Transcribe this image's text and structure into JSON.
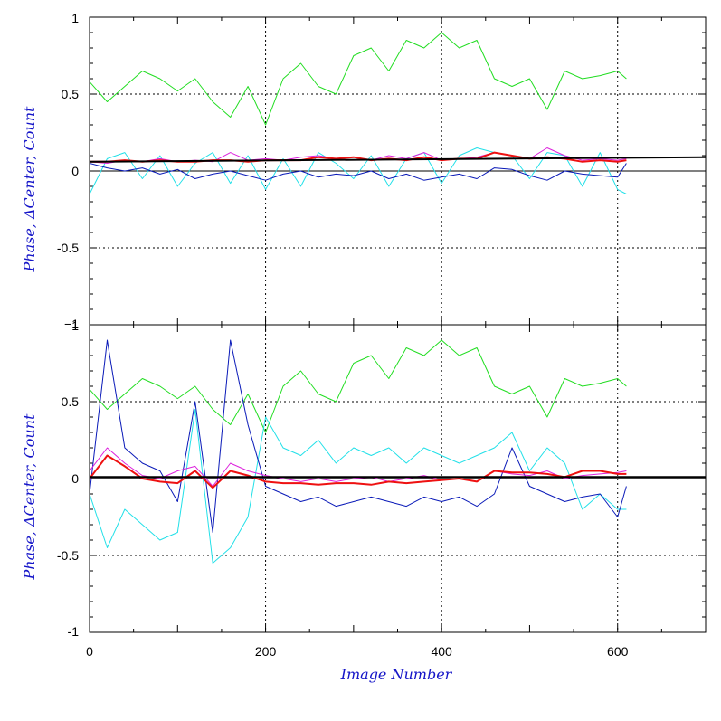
{
  "chart_data": {
    "type": "line",
    "xlabel": "Image Number",
    "x_ticks": [
      0,
      200,
      400,
      600
    ],
    "xlim": [
      0,
      700
    ],
    "colors": {
      "green": "#22dd22",
      "cyan": "#22e0e8",
      "blue": "#0a1ab8",
      "magenta": "#dd22dd",
      "red": "#ee1111",
      "black": "#000000"
    },
    "panels": [
      {
        "ylabel": "Phase, ΔCenter, Count",
        "ylim": [
          -1,
          1
        ],
        "y_ticks": [
          1,
          0.5,
          0,
          -0.5,
          -1
        ],
        "y_tick_labels": [
          "1",
          "0.5",
          "0",
          "-0.5",
          "−1"
        ],
        "grid": true,
        "series": [
          {
            "color": "green",
            "x": [
              0,
              20,
              40,
              60,
              80,
              100,
              120,
              140,
              160,
              180,
              200,
              220,
              240,
              260,
              280,
              300,
              320,
              340,
              360,
              380,
              400,
              420,
              440,
              460,
              480,
              500,
              520,
              540,
              560,
              580,
              600,
              610
            ],
            "values": [
              0.58,
              0.45,
              0.55,
              0.65,
              0.6,
              0.52,
              0.6,
              0.45,
              0.35,
              0.55,
              0.3,
              0.6,
              0.7,
              0.55,
              0.5,
              0.75,
              0.8,
              0.65,
              0.85,
              0.8,
              0.9,
              0.8,
              0.85,
              0.6,
              0.55,
              0.6,
              0.4,
              0.65,
              0.6,
              0.62,
              0.65,
              0.6
            ]
          },
          {
            "color": "cyan",
            "x": [
              0,
              20,
              40,
              60,
              80,
              100,
              120,
              140,
              160,
              180,
              200,
              220,
              240,
              260,
              280,
              300,
              320,
              340,
              360,
              380,
              400,
              420,
              440,
              460,
              480,
              500,
              520,
              540,
              560,
              580,
              600,
              610
            ],
            "values": [
              -0.15,
              0.08,
              0.12,
              -0.05,
              0.1,
              -0.1,
              0.05,
              0.12,
              -0.08,
              0.1,
              -0.12,
              0.08,
              -0.1,
              0.12,
              0.05,
              -0.05,
              0.1,
              -0.1,
              0.08,
              0.12,
              -0.08,
              0.1,
              0.15,
              0.12,
              0.1,
              -0.05,
              0.12,
              0.1,
              -0.1,
              0.12,
              -0.12,
              -0.15
            ]
          },
          {
            "color": "blue",
            "x": [
              0,
              20,
              40,
              60,
              80,
              100,
              120,
              140,
              160,
              180,
              200,
              220,
              240,
              260,
              280,
              300,
              320,
              340,
              360,
              380,
              400,
              420,
              440,
              460,
              480,
              500,
              520,
              540,
              560,
              580,
              600,
              610
            ],
            "values": [
              0.05,
              0.02,
              0.0,
              0.02,
              -0.02,
              0.01,
              -0.05,
              -0.02,
              0.0,
              -0.03,
              -0.06,
              -0.02,
              0.0,
              -0.04,
              -0.02,
              -0.03,
              0.0,
              -0.05,
              -0.02,
              -0.06,
              -0.04,
              -0.02,
              -0.05,
              0.02,
              0.01,
              -0.03,
              -0.06,
              0.0,
              -0.02,
              -0.03,
              -0.04,
              0.05
            ]
          },
          {
            "color": "magenta",
            "x": [
              0,
              20,
              40,
              60,
              80,
              100,
              120,
              140,
              160,
              180,
              200,
              220,
              240,
              260,
              280,
              300,
              320,
              340,
              360,
              380,
              400,
              420,
              440,
              460,
              480,
              500,
              520,
              540,
              560,
              580,
              600,
              610
            ],
            "values": [
              0.06,
              0.05,
              0.07,
              0.06,
              0.08,
              0.06,
              0.07,
              0.06,
              0.12,
              0.07,
              0.08,
              0.07,
              0.09,
              0.1,
              0.08,
              0.09,
              0.07,
              0.1,
              0.08,
              0.12,
              0.07,
              0.08,
              0.09,
              0.12,
              0.1,
              0.08,
              0.15,
              0.1,
              0.07,
              0.08,
              0.07,
              0.08
            ]
          },
          {
            "color": "red",
            "x": [
              0,
              20,
              40,
              60,
              80,
              100,
              120,
              140,
              160,
              180,
              200,
              220,
              240,
              260,
              280,
              300,
              320,
              340,
              360,
              380,
              400,
              420,
              440,
              460,
              480,
              500,
              520,
              540,
              560,
              580,
              600,
              610
            ],
            "values": [
              0.06,
              0.06,
              0.07,
              0.06,
              0.07,
              0.06,
              0.06,
              0.07,
              0.07,
              0.06,
              0.07,
              0.07,
              0.07,
              0.09,
              0.08,
              0.09,
              0.07,
              0.08,
              0.07,
              0.09,
              0.07,
              0.08,
              0.08,
              0.12,
              0.1,
              0.08,
              0.09,
              0.08,
              0.06,
              0.07,
              0.06,
              0.07
            ]
          },
          {
            "color": "black",
            "x": [
              0,
              700
            ],
            "values": [
              0.06,
              0.09
            ]
          }
        ]
      },
      {
        "ylabel": "Phase, ΔCenter, Count",
        "ylim": [
          -1,
          1
        ],
        "y_ticks": [
          1,
          0.5,
          0,
          -0.5,
          -1
        ],
        "y_tick_labels": [
          "1",
          "0.5",
          "0",
          "-0.5",
          "-1"
        ],
        "grid": true,
        "series": [
          {
            "color": "green",
            "x": [
              0,
              20,
              40,
              60,
              80,
              100,
              120,
              140,
              160,
              180,
              200,
              220,
              240,
              260,
              280,
              300,
              320,
              340,
              360,
              380,
              400,
              420,
              440,
              460,
              480,
              500,
              520,
              540,
              560,
              580,
              600,
              610
            ],
            "values": [
              0.58,
              0.45,
              0.55,
              0.65,
              0.6,
              0.52,
              0.6,
              0.45,
              0.35,
              0.55,
              0.3,
              0.6,
              0.7,
              0.55,
              0.5,
              0.75,
              0.8,
              0.65,
              0.85,
              0.8,
              0.9,
              0.8,
              0.85,
              0.6,
              0.55,
              0.6,
              0.4,
              0.65,
              0.6,
              0.62,
              0.65,
              0.6
            ]
          },
          {
            "color": "cyan",
            "x": [
              0,
              20,
              40,
              60,
              80,
              100,
              120,
              140,
              160,
              180,
              200,
              220,
              240,
              260,
              280,
              300,
              320,
              340,
              360,
              380,
              400,
              420,
              440,
              460,
              480,
              500,
              520,
              540,
              560,
              580,
              600,
              610
            ],
            "values": [
              -0.1,
              -0.45,
              -0.2,
              -0.3,
              -0.4,
              -0.35,
              0.45,
              -0.55,
              -0.45,
              -0.25,
              0.4,
              0.2,
              0.15,
              0.25,
              0.1,
              0.2,
              0.15,
              0.2,
              0.1,
              0.2,
              0.15,
              0.1,
              0.15,
              0.2,
              0.3,
              0.05,
              0.2,
              0.1,
              -0.2,
              -0.1,
              -0.2,
              -0.2
            ]
          },
          {
            "color": "blue",
            "x": [
              0,
              20,
              40,
              60,
              80,
              100,
              120,
              140,
              160,
              180,
              200,
              220,
              240,
              260,
              280,
              300,
              320,
              340,
              360,
              380,
              400,
              420,
              440,
              460,
              480,
              500,
              520,
              540,
              560,
              580,
              600,
              610
            ],
            "values": [
              -0.1,
              0.9,
              0.2,
              0.1,
              0.05,
              -0.15,
              0.5,
              -0.35,
              0.9,
              0.35,
              -0.05,
              -0.1,
              -0.15,
              -0.12,
              -0.18,
              -0.15,
              -0.12,
              -0.15,
              -0.18,
              -0.12,
              -0.15,
              -0.12,
              -0.18,
              -0.1,
              0.2,
              -0.05,
              -0.1,
              -0.15,
              -0.12,
              -0.1,
              -0.25,
              -0.05
            ]
          },
          {
            "color": "magenta",
            "x": [
              0,
              20,
              40,
              60,
              80,
              100,
              120,
              140,
              160,
              180,
              200,
              220,
              240,
              260,
              280,
              300,
              320,
              340,
              360,
              380,
              400,
              420,
              440,
              460,
              480,
              500,
              520,
              540,
              560,
              580,
              600,
              610
            ],
            "values": [
              0.05,
              0.2,
              0.1,
              0.02,
              0.0,
              0.05,
              0.08,
              -0.05,
              0.1,
              0.05,
              0.02,
              0.0,
              -0.02,
              0.0,
              -0.02,
              0.0,
              0.01,
              -0.02,
              0.0,
              0.02,
              -0.01,
              0.0,
              -0.02,
              0.05,
              0.03,
              0.02,
              0.05,
              0.0,
              0.02,
              0.03,
              0.04,
              0.05
            ]
          },
          {
            "color": "red",
            "x": [
              0,
              20,
              40,
              60,
              80,
              100,
              120,
              140,
              160,
              180,
              200,
              220,
              240,
              260,
              280,
              300,
              320,
              340,
              360,
              380,
              400,
              420,
              440,
              460,
              480,
              500,
              520,
              540,
              560,
              580,
              600,
              610
            ],
            "values": [
              0.0,
              0.15,
              0.08,
              0.0,
              -0.02,
              -0.03,
              0.05,
              -0.06,
              0.05,
              0.02,
              -0.02,
              -0.03,
              -0.03,
              -0.04,
              -0.03,
              -0.03,
              -0.04,
              -0.02,
              -0.03,
              -0.02,
              -0.01,
              0.0,
              -0.02,
              0.05,
              0.04,
              0.04,
              0.03,
              0.01,
              0.05,
              0.05,
              0.03,
              0.03
            ]
          },
          {
            "color": "black",
            "x": [
              0,
              700
            ],
            "values": [
              0.01,
              0.01
            ]
          }
        ]
      }
    ]
  }
}
